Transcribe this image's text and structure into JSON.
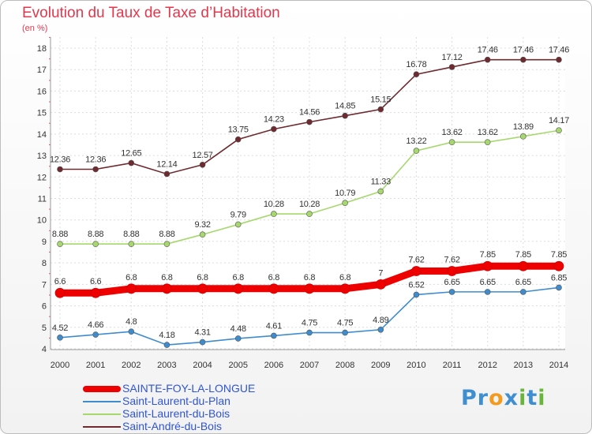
{
  "title": "Evolution du Taux de Taxe d’Habitation",
  "subtitle": "(en %)",
  "logo": {
    "p": "Pr",
    "o": "o",
    "x": "x",
    "i1": "i",
    "t": "t",
    "i2": "i"
  },
  "chart_data": {
    "type": "line",
    "title": "Evolution du Taux de Taxe d’Habitation",
    "subtitle": "(en %)",
    "xlabel": "",
    "ylabel": "",
    "ylim": [
      4,
      18
    ],
    "yticks": [
      "4",
      "5",
      "6",
      "7",
      "8",
      "9",
      "10",
      "11",
      "12",
      "13",
      "14",
      "15",
      "16",
      "17",
      "18"
    ],
    "x": [
      "2000",
      "2001",
      "2002",
      "2003",
      "2004",
      "2005",
      "2006",
      "2007",
      "2008",
      "2009",
      "2010",
      "2011",
      "2012",
      "2013",
      "2014"
    ],
    "legend_position": "bottom-left",
    "grid": true,
    "series": [
      {
        "name": "SAINTE-FOY-LA-LONGUE",
        "color": "#ee0000",
        "highlight": true,
        "values": [
          6.6,
          6.6,
          6.8,
          6.8,
          6.8,
          6.8,
          6.8,
          6.8,
          6.8,
          7,
          7.62,
          7.62,
          7.85,
          7.85,
          7.85
        ],
        "labels": [
          "6.6",
          "6.6",
          "6.8",
          "6.8",
          "6.8",
          "6.8",
          "6.8",
          "6.8",
          "6.8",
          "7",
          "7.62",
          "7.62",
          "7.85",
          "7.85",
          "7.85"
        ]
      },
      {
        "name": "Saint-Laurent-du-Plan",
        "color": "#3e8ccd",
        "highlight": false,
        "values": [
          4.52,
          4.66,
          4.8,
          4.18,
          4.31,
          4.48,
          4.61,
          4.75,
          4.75,
          4.89,
          6.52,
          6.65,
          6.65,
          6.65,
          6.85
        ],
        "labels": [
          "4.52",
          "4.66",
          "4.8",
          "4.18",
          "4.31",
          "4.48",
          "4.61",
          "4.75",
          "4.75",
          "4.89",
          "6.52",
          "6.65",
          "6.65",
          "6.65",
          "6.85"
        ]
      },
      {
        "name": "Saint-Laurent-du-Bois",
        "color": "#a6d86e",
        "highlight": false,
        "values": [
          8.88,
          8.88,
          8.88,
          8.88,
          9.32,
          9.79,
          10.28,
          10.28,
          10.79,
          11.33,
          13.22,
          13.62,
          13.62,
          13.89,
          14.17
        ],
        "labels": [
          "8.88",
          "8.88",
          "8.88",
          "8.88",
          "9.32",
          "9.79",
          "10.28",
          "10.28",
          "10.79",
          "11.33",
          "13.22",
          "13.62",
          "13.62",
          "13.89",
          "14.17"
        ]
      },
      {
        "name": "Saint-André-du-Bois",
        "color": "#6e2a2f",
        "highlight": false,
        "values": [
          12.36,
          12.36,
          12.65,
          12.14,
          12.57,
          13.75,
          14.23,
          14.56,
          14.85,
          15.15,
          16.78,
          17.12,
          17.46,
          17.46,
          17.46
        ],
        "labels": [
          "12.36",
          "12.36",
          "12.65",
          "12.14",
          "12.57",
          "13.75",
          "14.23",
          "14.56",
          "14.85",
          "15.15",
          "16.78",
          "17.12",
          "17.46",
          "17.46",
          "17.46"
        ]
      }
    ]
  }
}
